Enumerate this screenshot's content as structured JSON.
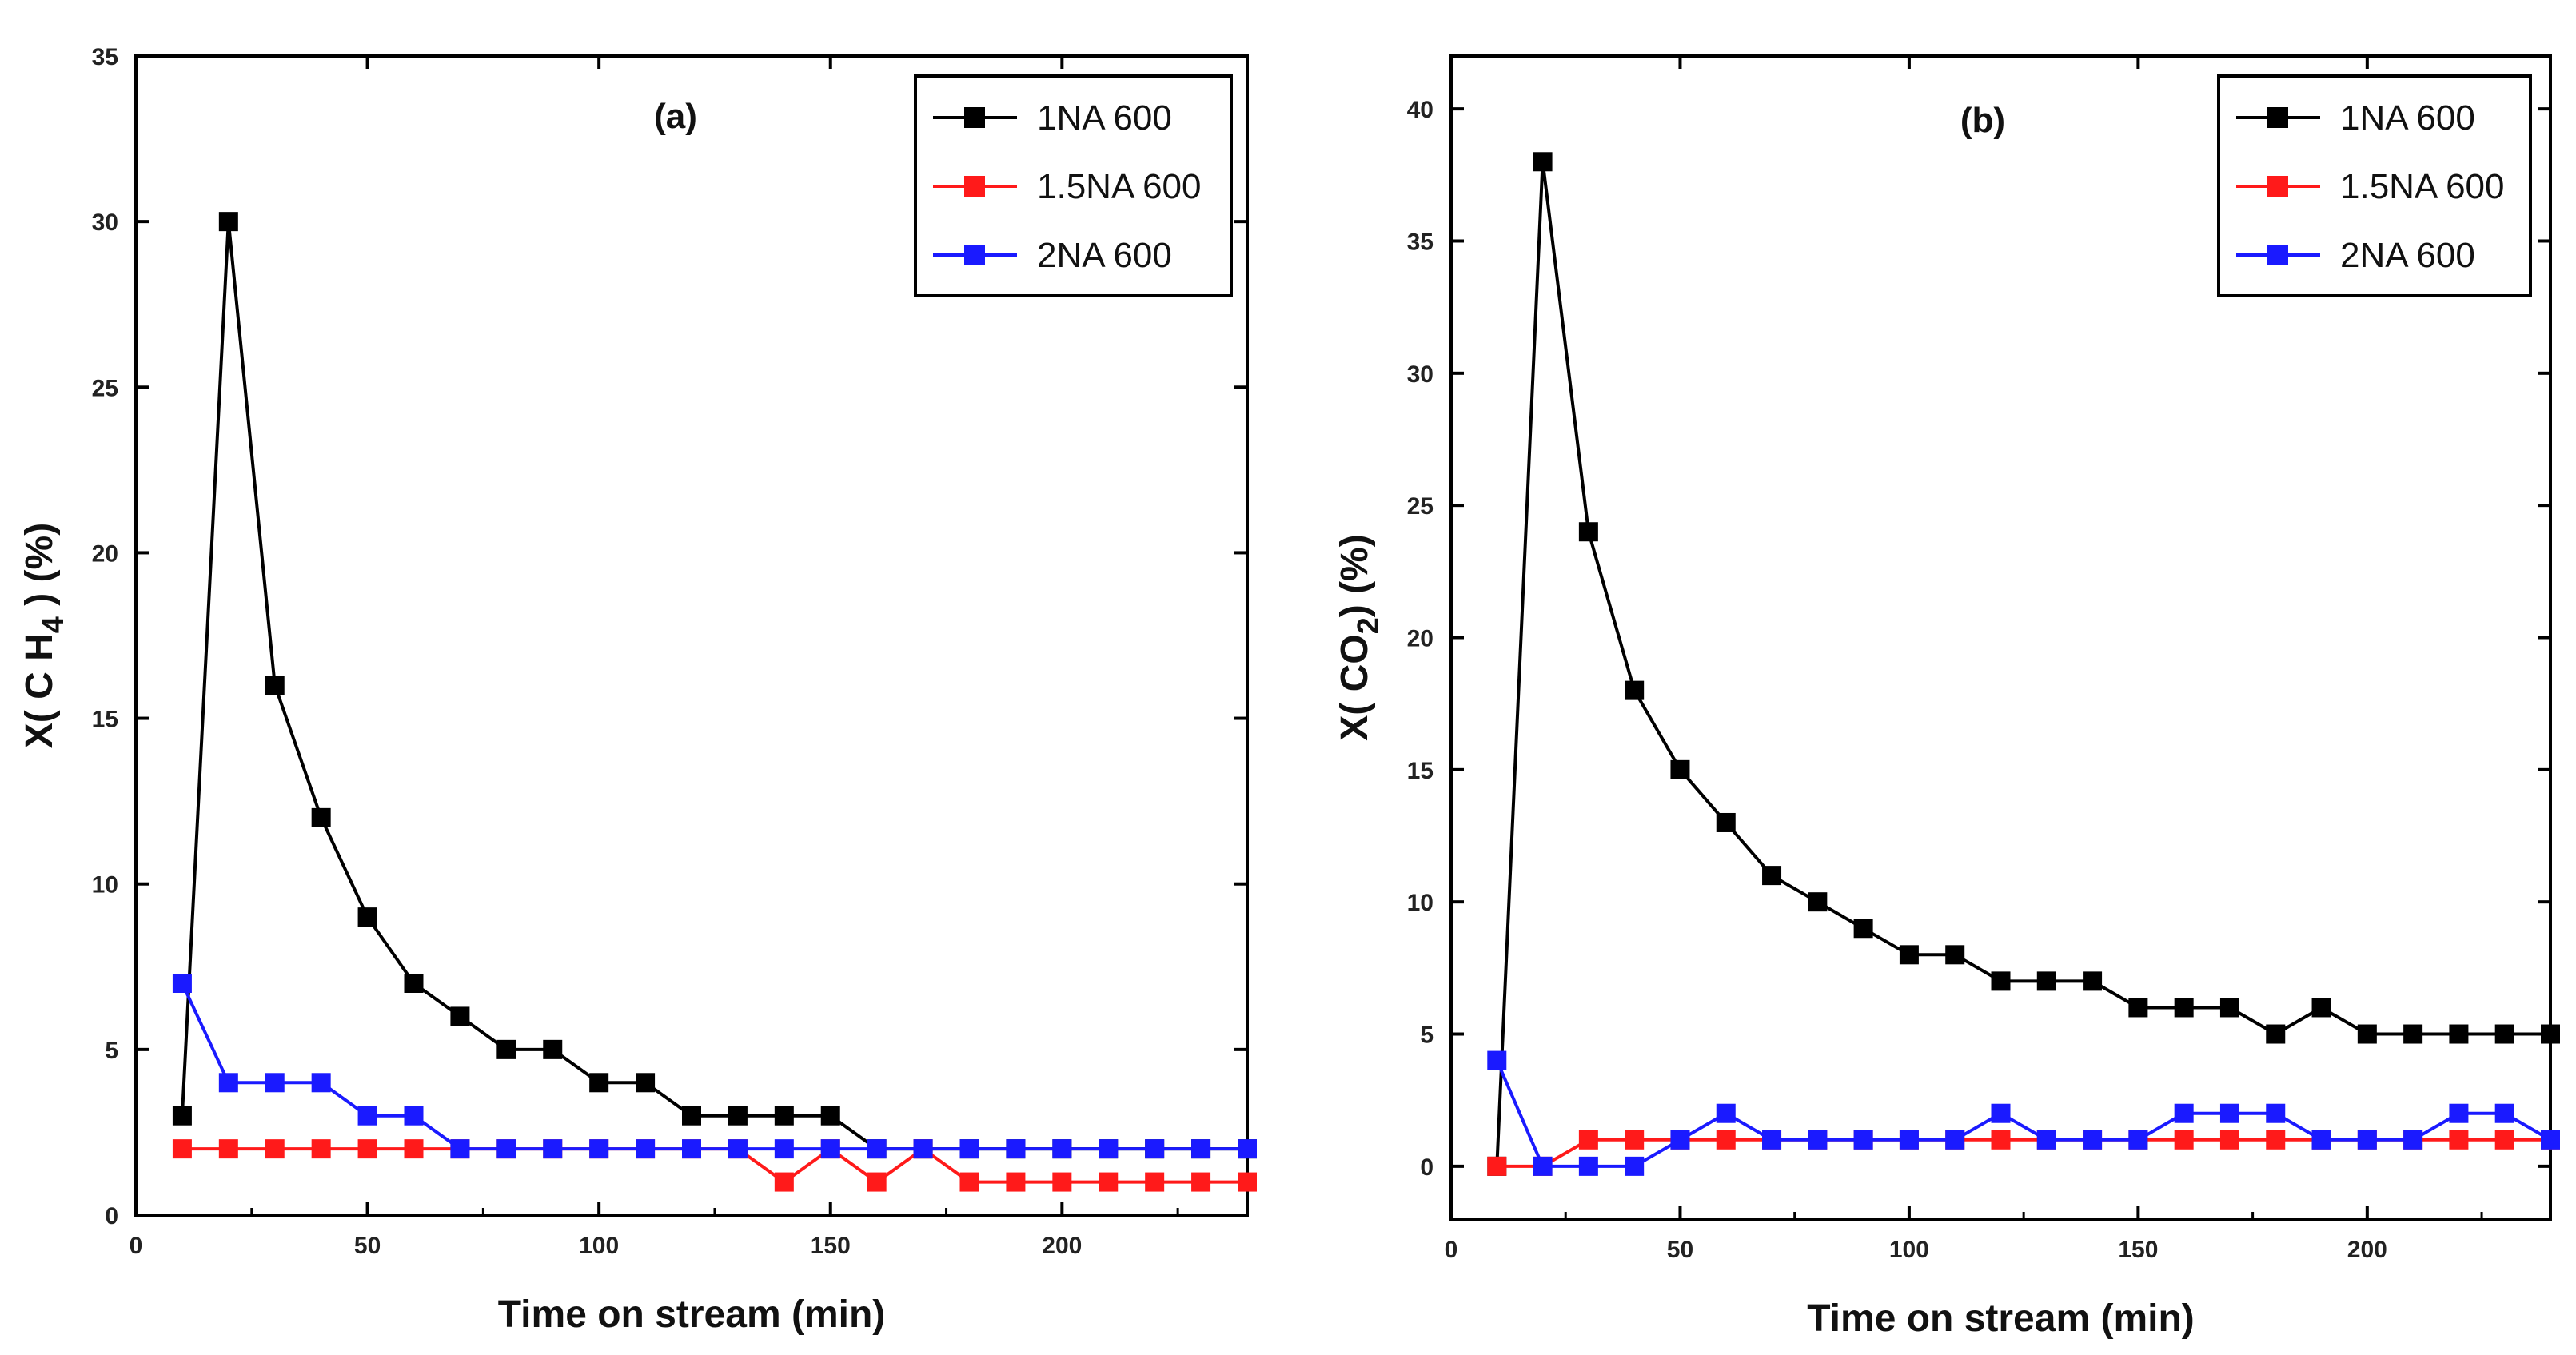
{
  "chart_data": [
    {
      "type": "line",
      "panel_label": "(a)",
      "xlabel": "Time on stream (min)",
      "ylabel": {
        "prefix": "X( C H",
        "sub": "4",
        "suffix": " ) (%)"
      },
      "xlim": [
        0,
        240
      ],
      "ylim": [
        0,
        35
      ],
      "x_ticks": [
        {
          "value": 0,
          "label": "0"
        },
        {
          "value": 50,
          "label": "50"
        },
        {
          "value": 100,
          "label": "100"
        },
        {
          "value": 150,
          "label": "150"
        },
        {
          "value": 200,
          "label": "200"
        }
      ],
      "y_ticks": [
        {
          "value": 0,
          "label": "0"
        },
        {
          "value": 5,
          "label": "5"
        },
        {
          "value": 10,
          "label": "10"
        },
        {
          "value": 15,
          "label": "15"
        },
        {
          "value": 20,
          "label": "20"
        },
        {
          "value": 25,
          "label": "25"
        },
        {
          "value": 30,
          "label": "30"
        },
        {
          "value": 35,
          "label": "35"
        }
      ],
      "legend_position": "top-right",
      "x": [
        10,
        20,
        30,
        40,
        50,
        60,
        70,
        80,
        90,
        100,
        110,
        120,
        130,
        140,
        150,
        160,
        170,
        180,
        190,
        200,
        210,
        220,
        230,
        240
      ],
      "series": [
        {
          "name": "1NA 600",
          "color": "#000000",
          "values": [
            3,
            30,
            16,
            12,
            9,
            7,
            6,
            5,
            5,
            4,
            4,
            3,
            3,
            3,
            3,
            2,
            2,
            2,
            2,
            2,
            2,
            2,
            2,
            2
          ]
        },
        {
          "name": "1.5NA 600",
          "color": "#ff1a1a",
          "values": [
            2,
            2,
            2,
            2,
            2,
            2,
            2,
            2,
            2,
            2,
            2,
            2,
            2,
            1,
            2,
            1,
            2,
            1,
            1,
            1,
            1,
            1,
            1,
            1
          ]
        },
        {
          "name": "2NA 600",
          "color": "#1a1aff",
          "values": [
            7,
            4,
            4,
            4,
            3,
            3,
            2,
            2,
            2,
            2,
            2,
            2,
            2,
            2,
            2,
            2,
            2,
            2,
            2,
            2,
            2,
            2,
            2,
            2
          ]
        }
      ]
    },
    {
      "type": "line",
      "panel_label": "(b)",
      "xlabel": "Time on stream (min)",
      "ylabel": {
        "prefix": "X( CO",
        "sub": "2",
        "suffix": ") (%)"
      },
      "xlim": [
        0,
        240
      ],
      "ylim": [
        -2,
        42
      ],
      "x_ticks": [
        {
          "value": 0,
          "label": "0"
        },
        {
          "value": 50,
          "label": "50"
        },
        {
          "value": 100,
          "label": "100"
        },
        {
          "value": 150,
          "label": "150"
        },
        {
          "value": 200,
          "label": "200"
        }
      ],
      "y_ticks": [
        {
          "value": 0,
          "label": "0"
        },
        {
          "value": 5,
          "label": "5"
        },
        {
          "value": 10,
          "label": "10"
        },
        {
          "value": 15,
          "label": "15"
        },
        {
          "value": 20,
          "label": "20"
        },
        {
          "value": 25,
          "label": "25"
        },
        {
          "value": 30,
          "label": "30"
        },
        {
          "value": 35,
          "label": "35"
        },
        {
          "value": 40,
          "label": "40"
        }
      ],
      "legend_position": "top-right",
      "x": [
        10,
        20,
        30,
        40,
        50,
        60,
        70,
        80,
        90,
        100,
        110,
        120,
        130,
        140,
        150,
        160,
        170,
        180,
        190,
        200,
        210,
        220,
        230,
        240
      ],
      "series": [
        {
          "name": "1NA 600",
          "color": "#000000",
          "values": [
            0,
            38,
            24,
            18,
            15,
            13,
            11,
            10,
            9,
            8,
            8,
            7,
            7,
            7,
            6,
            6,
            6,
            5,
            6,
            5,
            5,
            5,
            5,
            5
          ]
        },
        {
          "name": "1.5NA 600",
          "color": "#ff1a1a",
          "values": [
            0,
            0,
            1,
            1,
            1,
            1,
            1,
            1,
            1,
            1,
            1,
            1,
            1,
            1,
            1,
            1,
            1,
            1,
            1,
            1,
            1,
            1,
            1,
            1
          ]
        },
        {
          "name": "2NA 600",
          "color": "#1a1aff",
          "values": [
            4,
            0,
            0,
            0,
            1,
            2,
            1,
            1,
            1,
            1,
            1,
            2,
            1,
            1,
            1,
            2,
            2,
            2,
            1,
            1,
            1,
            2,
            2,
            1
          ]
        }
      ]
    }
  ]
}
